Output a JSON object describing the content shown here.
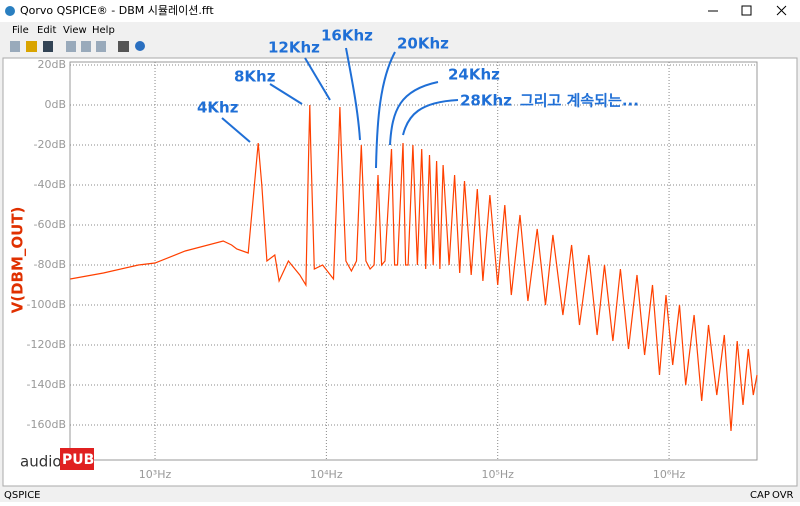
{
  "window": {
    "title": "Qorvo QSPICE® - DBM 시뮬레이션.fft",
    "menu": [
      "File",
      "Edit",
      "View",
      "Help"
    ],
    "status": [
      "QSPICE",
      "CAP",
      "OVR"
    ],
    "logo": [
      "audio",
      "PUB"
    ]
  },
  "chart_data": {
    "type": "line",
    "y_label": "V(DBM_OUT)",
    "x_scale": "log",
    "grid": true,
    "xlim": [
      319,
      3260000
    ],
    "ylim": [
      -177.5,
      21.5
    ],
    "xticks": [
      {
        "value": 1000,
        "label": "10³Hz"
      },
      {
        "value": 10000,
        "label": "10⁴Hz"
      },
      {
        "value": 100000,
        "label": "10⁵Hz"
      },
      {
        "value": 1000000,
        "label": "10⁶Hz"
      }
    ],
    "yticks": [
      {
        "value": 20,
        "label": "20dB"
      },
      {
        "value": 0,
        "label": "0dB"
      },
      {
        "value": -20,
        "label": "-20dB"
      },
      {
        "value": -40,
        "label": "-40dB"
      },
      {
        "value": -60,
        "label": "-60dB"
      },
      {
        "value": -80,
        "label": "-80dB"
      },
      {
        "value": -100,
        "label": "-100dB"
      },
      {
        "value": -120,
        "label": "-120dB"
      },
      {
        "value": -140,
        "label": "-140dB"
      },
      {
        "value": -160,
        "label": "-160dB"
      }
    ],
    "annotations": [
      "4Khz",
      "8Khz",
      "12Khz",
      "16Khz",
      "20Khz",
      "24Khz",
      "28Khz",
      "그리고 계속되는..."
    ],
    "x": [
      320,
      500,
      800,
      1000,
      1500,
      2500,
      2800,
      3000,
      3500,
      3800,
      4000,
      4200,
      4500,
      5000,
      5300,
      6000,
      7000,
      7600,
      7900,
      8000,
      8100,
      8500,
      9500,
      11000,
      11800,
      12000,
      12200,
      13000,
      14000,
      15000,
      16000,
      17000,
      18000,
      19000,
      20000,
      21000,
      22000,
      24000,
      25000,
      26000,
      28000,
      29000,
      30000,
      32000,
      34000,
      36000,
      38000,
      40000,
      42000,
      44000,
      46000,
      48000,
      52000,
      56000,
      60000,
      64000,
      70000,
      76000,
      82000,
      90000,
      100000,
      110000,
      120000,
      135000,
      150000,
      170000,
      190000,
      210000,
      240000,
      270000,
      300000,
      340000,
      380000,
      420000,
      470000,
      520000,
      580000,
      650000,
      720000,
      800000,
      880000,
      960000,
      1050000,
      1150000,
      1250000,
      1400000,
      1550000,
      1700000,
      1900000,
      2100000,
      2300000,
      2500000,
      2700000,
      2900000,
      3100000,
      3260000
    ],
    "series": [
      {
        "name": "V(DBM_OUT)",
        "color": "#ff4000",
        "values": [
          -87,
          -84,
          -80,
          -79,
          -73,
          -68,
          -70,
          -72,
          -74,
          -40,
          -19,
          -40,
          -78,
          -75,
          -88,
          -78,
          -85,
          -90,
          -20,
          0,
          -20,
          -82,
          -80,
          -87,
          -20,
          -1,
          -20,
          -78,
          -83,
          -78,
          -20,
          -78,
          -82,
          -80,
          -35,
          -80,
          -78,
          -22,
          -80,
          -80,
          -19,
          -80,
          -80,
          -20,
          -80,
          -22,
          -82,
          -25,
          -80,
          -28,
          -82,
          -30,
          -80,
          -35,
          -84,
          -38,
          -85,
          -42,
          -88,
          -45,
          -90,
          -50,
          -95,
          -55,
          -98,
          -62,
          -100,
          -65,
          -105,
          -70,
          -110,
          -75,
          -115,
          -80,
          -118,
          -82,
          -122,
          -85,
          -125,
          -90,
          -135,
          -95,
          -130,
          -100,
          -140,
          -105,
          -148,
          -110,
          -145,
          -115,
          -163,
          -118,
          -150,
          -122,
          -145,
          -135
        ]
      }
    ]
  }
}
